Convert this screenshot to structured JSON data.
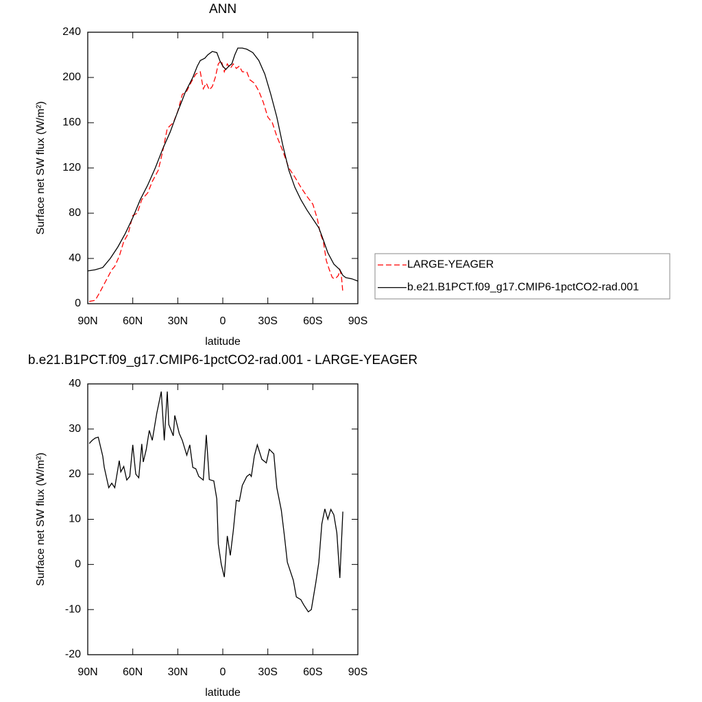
{
  "chart_data": [
    {
      "type": "line",
      "title": "ANN",
      "x_label": "latitude",
      "y_label": "Surface net SW flux (W/m²)",
      "xlim": [
        90,
        -90
      ],
      "xticks": [
        {
          "value": 90,
          "label": "90N"
        },
        {
          "value": 60,
          "label": "60N"
        },
        {
          "value": 30,
          "label": "30N"
        },
        0,
        {
          "value": -30,
          "label": "30S"
        },
        {
          "value": -60,
          "label": "60S"
        },
        {
          "value": -90,
          "label": "90S"
        }
      ],
      "ylim": [
        0,
        240
      ],
      "yticks": [
        0,
        40,
        80,
        120,
        160,
        200,
        240
      ],
      "legend": "right",
      "series": [
        {
          "name": "LARGE-YEAGER",
          "color": "#ff0000",
          "style": "dashed",
          "x": [
            89,
            85,
            82,
            78,
            74,
            72,
            69,
            66,
            63,
            60,
            57,
            54,
            50,
            47,
            43,
            40,
            37,
            33,
            30,
            27,
            24,
            21,
            18,
            15,
            13,
            11,
            9,
            7,
            5,
            3,
            1,
            -1,
            -3,
            -5,
            -7,
            -9,
            -11,
            -13,
            -16,
            -18,
            -21,
            -24,
            -27,
            -30,
            -33,
            -36,
            -40,
            -44,
            -48,
            -52,
            -56,
            -60,
            -63,
            -65,
            -67,
            -69,
            -71,
            -73,
            -75,
            -77,
            -78,
            -79,
            -80
          ],
          "values": [
            2,
            3,
            10,
            20,
            30,
            33,
            42,
            55,
            62,
            78,
            80,
            92,
            98,
            108,
            118,
            135,
            155,
            160,
            170,
            185,
            188,
            196,
            203,
            205,
            190,
            195,
            189,
            192,
            200,
            212,
            215,
            205,
            212,
            208,
            212,
            208,
            210,
            205,
            205,
            198,
            195,
            188,
            178,
            165,
            160,
            148,
            135,
            120,
            112,
            103,
            95,
            88,
            75,
            62,
            55,
            38,
            30,
            23,
            22,
            25,
            30,
            25,
            10
          ]
        },
        {
          "name": "b.e21.B1PCT.f09_g17.CMIP6-1pctCO2-rad.001",
          "color": "#000000",
          "style": "solid",
          "x": [
            90,
            85,
            80,
            75,
            70,
            65,
            60,
            55,
            50,
            45,
            40,
            35,
            30,
            27,
            25,
            20,
            17,
            15,
            12,
            10,
            7,
            4,
            2,
            0,
            -2,
            -4,
            -6,
            -8,
            -10,
            -13,
            -16,
            -20,
            -24,
            -28,
            -32,
            -36,
            -40,
            -44,
            -48,
            -52,
            -56,
            -60,
            -64,
            -66,
            -70,
            -74,
            -78,
            -80,
            -82,
            -86,
            -90
          ],
          "values": [
            29,
            30,
            32,
            40,
            50,
            62,
            76,
            92,
            105,
            120,
            137,
            152,
            170,
            180,
            187,
            200,
            210,
            215,
            217,
            220,
            223,
            222,
            215,
            210,
            207,
            210,
            212,
            220,
            226,
            226,
            225,
            222,
            215,
            203,
            185,
            165,
            140,
            118,
            103,
            92,
            83,
            75,
            67,
            60,
            45,
            35,
            30,
            25,
            23,
            22,
            20
          ]
        }
      ]
    },
    {
      "type": "line",
      "title": "b.e21.B1PCT.f09_g17.CMIP6-1pctCO2-rad.001 - LARGE-YEAGER",
      "x_label": "latitude",
      "y_label": "Surface net SW flux (W/m²)",
      "xlim": [
        90,
        -90
      ],
      "xticks": [
        {
          "value": 90,
          "label": "90N"
        },
        {
          "value": 60,
          "label": "60N"
        },
        {
          "value": 30,
          "label": "30N"
        },
        0,
        {
          "value": -30,
          "label": "30S"
        },
        {
          "value": -60,
          "label": "60S"
        },
        {
          "value": -90,
          "label": "90S"
        }
      ],
      "ylim": [
        -20,
        40
      ],
      "yticks": [
        -20,
        -10,
        0,
        10,
        20,
        30,
        40
      ],
      "color": "#000000",
      "x": [
        89,
        87,
        85,
        83,
        80,
        79,
        76,
        74,
        72,
        69,
        68,
        66,
        64,
        62,
        60,
        58,
        56,
        54,
        53,
        51,
        49,
        47,
        44,
        41,
        39,
        37,
        36,
        33,
        32,
        29,
        27,
        24,
        22,
        20,
        18,
        16,
        13,
        11,
        9,
        6,
        4,
        3,
        1,
        -1,
        -3,
        -5,
        -7,
        -9,
        -11,
        -13,
        -16,
        -18,
        -19,
        -21,
        -23,
        -26,
        -29,
        -31,
        -34,
        -36,
        -39,
        -41,
        -43,
        -47,
        -49,
        -52,
        -54,
        -57,
        -59,
        -62,
        -64,
        -66,
        -68,
        -70,
        -72,
        -74,
        -76,
        -78,
        -80
      ],
      "values": [
        26.8,
        27.5,
        28,
        28.2,
        24,
        21.5,
        17,
        18,
        17,
        23,
        20.5,
        21.7,
        18.7,
        19.5,
        26.5,
        20,
        19.2,
        26.7,
        22.7,
        25.5,
        29.7,
        27.5,
        33.5,
        38.3,
        27.5,
        38.3,
        31,
        28.5,
        33,
        29,
        27.5,
        24.2,
        26.5,
        21.5,
        21.2,
        19.5,
        18.7,
        28.7,
        18.8,
        18.5,
        14.5,
        4.5,
        0,
        -2.8,
        6.3,
        2,
        7.5,
        14.2,
        14,
        17.5,
        19.5,
        20,
        19.5,
        24,
        26.5,
        23.3,
        22.5,
        25.5,
        24.5,
        17,
        12,
        6.5,
        0.5,
        -3.5,
        -7.2,
        -7.8,
        -9,
        -10.5,
        -10,
        -4,
        0.5,
        9,
        12.3,
        10,
        12.2,
        11,
        7,
        -3,
        11.7
      ]
    }
  ]
}
